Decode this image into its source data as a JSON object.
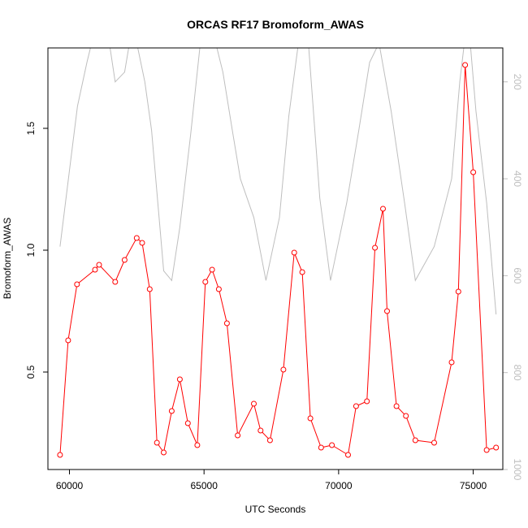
{
  "chart_data": {
    "type": "line",
    "title": "ORCAS RF17 Bromoform_AWAS",
    "xlabel": "UTC Seconds",
    "ylabel": "Bromoform_AWAS",
    "xlim": [
      59200,
      76100
    ],
    "ylim": [
      0.1,
      1.83
    ],
    "y2lim": [
      1000,
      130
    ],
    "y2_reversed": true,
    "x_ticks": [
      60000,
      65000,
      70000,
      75000
    ],
    "x_tick_labels": [
      "60000",
      "65000",
      "70000",
      "75000"
    ],
    "y_ticks": [
      0.5,
      1.0,
      1.5
    ],
    "y_tick_labels": [
      "0.5",
      "1.0",
      "1.5"
    ],
    "y2_ticks": [
      200,
      400,
      600,
      800,
      1000
    ],
    "y2_tick_labels": [
      "200",
      "400",
      "600",
      "800",
      "1000"
    ],
    "colors": {
      "bromoform": "#ff0000",
      "secondary": "#bebebe",
      "axis": "#000000"
    },
    "series": [
      {
        "axis": "left",
        "style": "line+points",
        "x": [
          59650,
          59950,
          60280,
          60950,
          61100,
          61700,
          62050,
          62500,
          62700,
          62980,
          63250,
          63500,
          63800,
          64100,
          64400,
          64750,
          65050,
          65300,
          65550,
          65850,
          66250,
          66850,
          67100,
          67450,
          67950,
          68350,
          68650,
          68950,
          69350,
          69750,
          70350,
          70650,
          71050,
          71350,
          71650,
          71800,
          72150,
          72500,
          72850,
          73550,
          74200,
          74450,
          74700,
          75000,
          75500,
          75850
        ],
        "y": [
          0.16,
          0.63,
          0.86,
          0.92,
          0.94,
          0.87,
          0.96,
          1.05,
          1.03,
          0.84,
          0.21,
          0.17,
          0.34,
          0.47,
          0.29,
          0.2,
          0.87,
          0.92,
          0.84,
          0.7,
          0.24,
          0.37,
          0.26,
          0.22,
          0.51,
          0.99,
          0.91,
          0.31,
          0.19,
          0.2,
          0.16,
          0.36,
          0.38,
          1.01,
          1.17,
          0.75,
          0.36,
          0.32,
          0.22,
          0.21,
          0.54,
          0.83,
          1.76,
          1.32,
          0.18,
          0.19
        ]
      },
      {
        "axis": "right",
        "style": "line",
        "x": [
          59650,
          60050,
          60300,
          60650,
          61000,
          61400,
          61700,
          62050,
          62350,
          62800,
          63050,
          63500,
          63800,
          64100,
          64500,
          64900,
          65300,
          65700,
          66050,
          66350,
          66850,
          67300,
          67800,
          68150,
          68600,
          68850,
          69300,
          69700,
          70300,
          70750,
          71150,
          71500,
          71950,
          72450,
          72850,
          73550,
          74200,
          74500,
          74800,
          75100,
          75500,
          75850
        ],
        "y": [
          540,
          360,
          250,
          160,
          80,
          90,
          200,
          180,
          80,
          200,
          300,
          590,
          610,
          500,
          310,
          100,
          90,
          180,
          300,
          400,
          480,
          610,
          480,
          270,
          80,
          100,
          440,
          610,
          450,
          300,
          160,
          120,
          260,
          450,
          610,
          540,
          400,
          200,
          60,
          260,
          450,
          680
        ]
      }
    ]
  }
}
